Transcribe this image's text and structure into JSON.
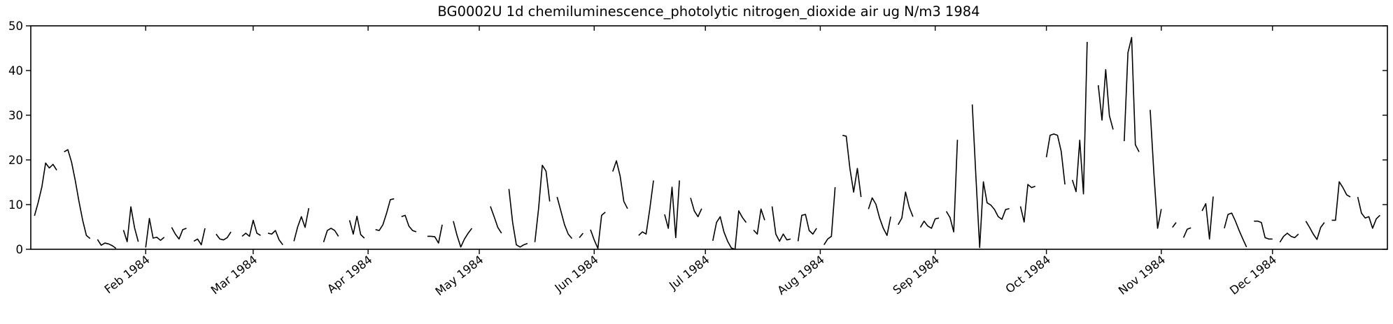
{
  "chart_data": {
    "type": "line",
    "title": "BG0002U 1d chemiluminescence_photolytic nitrogen_dioxide air ug N/m3 1984",
    "xlabel": "",
    "ylabel": "",
    "grid": false,
    "legend": "none",
    "line_color": "#000000",
    "background_color": "#ffffff",
    "x_axis": {
      "unit": "day_of_year_1984",
      "range_days": [
        0,
        366
      ],
      "tick_days": [
        31,
        60,
        91,
        121,
        152,
        182,
        213,
        244,
        274,
        305,
        335
      ],
      "tick_labels": [
        "Feb 1984",
        "Mar 1984",
        "Apr 1984",
        "May 1984",
        "Jun 1984",
        "Jul 1984",
        "Aug 1984",
        "Sep 1984",
        "Oct 1984",
        "Nov 1984",
        "Dec 1984"
      ],
      "tick_label_rotation_deg": 38
    },
    "y_axis": {
      "range": [
        0,
        50
      ],
      "ticks": [
        0,
        10,
        20,
        30,
        40,
        50
      ]
    },
    "series": [
      {
        "name": "nitrogen_dioxide_ug_N_per_m3_daily",
        "color": "#000000",
        "values": [
          null,
          7.5,
          10.5,
          14,
          19.3,
          18.2,
          19,
          17.7,
          null,
          21.8,
          22.3,
          19.5,
          15.4,
          10.7,
          6.5,
          3.1,
          2.4,
          null,
          2.2,
          0.9,
          1.4,
          1.2,
          0.8,
          0.2,
          null,
          4.3,
          1.7,
          9.5,
          4.8,
          1.7,
          null,
          0.4,
          6.9,
          2.5,
          2.7,
          2.0,
          2.7,
          null,
          4.9,
          3.4,
          2.3,
          4.4,
          4.7,
          null,
          1.8,
          2.3,
          1.0,
          4.7,
          null,
          null,
          3.4,
          2.3,
          2.1,
          2.6,
          3.9,
          null,
          null,
          2.9,
          3.6,
          2.9,
          6.5,
          3.6,
          3.1,
          null,
          3.6,
          3.4,
          4.2,
          2.1,
          1.0,
          null,
          null,
          1.8,
          5.0,
          7.3,
          4.9,
          9.2,
          null,
          null,
          null,
          1.6,
          4.2,
          4.7,
          4.2,
          2.9,
          null,
          null,
          6.5,
          3.4,
          7.4,
          3.3,
          2.5,
          null,
          null,
          4.4,
          4.2,
          5.5,
          8.1,
          11.1,
          11.3,
          null,
          7.3,
          7.6,
          5.2,
          4.2,
          3.9,
          null,
          null,
          2.9,
          2.9,
          2.8,
          1.4,
          5.5,
          null,
          null,
          6.3,
          3.1,
          0.5,
          2.3,
          3.6,
          4.7,
          null,
          null,
          null,
          null,
          9.6,
          7.3,
          4.9,
          3.6,
          null,
          13.5,
          6.0,
          1.0,
          0.5,
          1.0,
          1.3,
          null,
          1.6,
          9.1,
          18.8,
          17.5,
          10.7,
          null,
          11.7,
          8.6,
          5.5,
          3.4,
          2.4,
          null,
          2.6,
          3.6,
          null,
          4.4,
          2.1,
          0.2,
          7.6,
          8.3,
          null,
          17.4,
          19.8,
          16.4,
          10.7,
          9.1,
          null,
          null,
          3.1,
          3.9,
          3.4,
          9.0,
          15.4,
          null,
          null,
          7.8,
          4.7,
          13.9,
          2.6,
          15.4,
          null,
          null,
          11.5,
          8.6,
          7.3,
          9.1,
          null,
          null,
          1.9,
          6.0,
          7.3,
          3.9,
          1.8,
          0.3,
          0.0,
          8.6,
          7.1,
          6.0,
          null,
          4.3,
          3.4,
          9.0,
          6.5,
          null,
          9.6,
          3.4,
          1.8,
          3.4,
          2.1,
          2.3,
          null,
          1.8,
          7.6,
          7.8,
          4.2,
          3.4,
          4.7,
          null,
          1.0,
          2.3,
          2.9,
          13.9,
          null,
          25.5,
          25.3,
          18.0,
          12.8,
          18.1,
          11.7,
          null,
          9.0,
          11.5,
          10.1,
          7.0,
          4.7,
          3.1,
          7.3,
          null,
          5.5,
          7.0,
          12.8,
          9.4,
          7.3,
          null,
          4.9,
          6.3,
          5.2,
          4.7,
          6.8,
          7.0,
          null,
          8.5,
          7.1,
          3.9,
          24.5,
          null,
          null,
          null,
          32.4,
          16.0,
          0.4,
          15.1,
          10.4,
          9.9,
          8.9,
          7.3,
          6.7,
          8.9,
          9.1,
          null,
          null,
          9.6,
          6.1,
          14.5,
          13.8,
          14.1,
          null,
          null,
          20.6,
          25.5,
          25.8,
          25.5,
          21.9,
          14.5,
          null,
          15.5,
          12.9,
          24.4,
          12.4,
          46.4,
          null,
          null,
          36.7,
          28.9,
          40.2,
          29.9,
          26.8,
          null,
          null,
          24.2,
          44.0,
          47.4,
          23.4,
          21.8,
          null,
          null,
          31.2,
          17.0,
          4.7,
          9.0,
          null,
          null,
          4.9,
          6.0,
          null,
          2.6,
          4.5,
          4.8,
          null,
          null,
          8.6,
          10.2,
          2.3,
          11.8,
          null,
          null,
          4.7,
          7.8,
          8.1,
          6.3,
          4.2,
          2.3,
          0.5,
          null,
          6.3,
          6.3,
          6.0,
          2.6,
          2.3,
          2.3,
          null,
          1.6,
          2.9,
          3.6,
          2.9,
          2.6,
          3.4,
          null,
          6.3,
          4.9,
          3.4,
          2.2,
          4.9,
          6.0,
          null,
          6.5,
          6.5,
          15.1,
          13.8,
          12.2,
          11.7,
          null,
          11.7,
          8.1,
          7.0,
          7.3,
          4.7,
          6.8,
          7.6,
          null
        ]
      }
    ]
  }
}
